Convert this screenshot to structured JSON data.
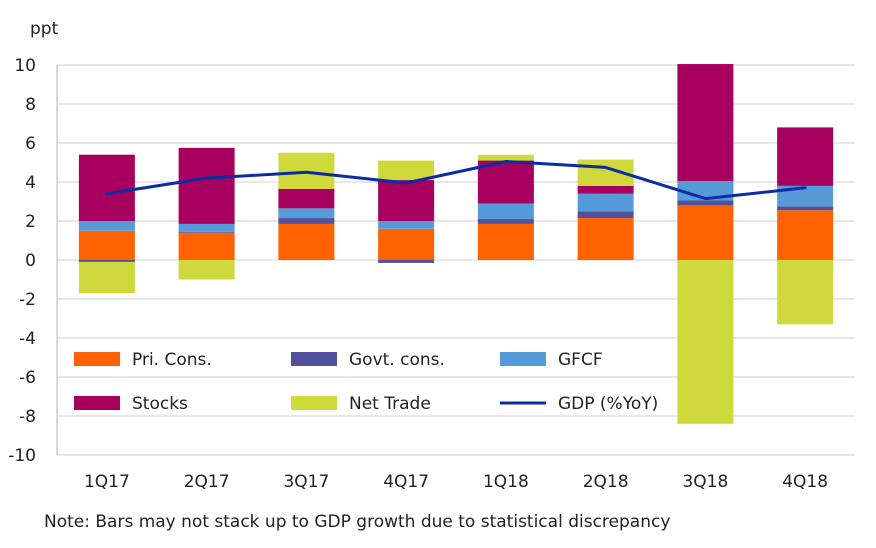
{
  "chart_data": {
    "type": "bar",
    "stacked": true,
    "ylabel": "ppt",
    "ylim": [
      -10,
      10
    ],
    "yticks": [
      10,
      8,
      6,
      4,
      2,
      0,
      -2,
      -4,
      -6,
      -8,
      -10
    ],
    "grid": true,
    "categories": [
      "1Q17",
      "2Q17",
      "3Q17",
      "4Q17",
      "1Q18",
      "2Q18",
      "3Q18",
      "4Q18"
    ],
    "series": [
      {
        "name": "Pri. Cons.",
        "color": "#ff6200",
        "values": [
          1.5,
          1.4,
          1.85,
          1.6,
          1.85,
          2.15,
          2.8,
          2.55
        ]
      },
      {
        "name": "Govt. cons.",
        "color": "#525199",
        "values": [
          -0.1,
          0.05,
          0.3,
          -0.15,
          0.25,
          0.35,
          0.25,
          0.2
        ]
      },
      {
        "name": "GFCF",
        "color": "#559bd9",
        "values": [
          0.5,
          0.4,
          0.5,
          0.4,
          0.8,
          0.9,
          1.0,
          1.05
        ]
      },
      {
        "name": "Stocks",
        "color": "#a8005e",
        "values": [
          3.4,
          3.9,
          1.0,
          2.1,
          2.2,
          0.4,
          6.0,
          3.0
        ]
      },
      {
        "name": "Net Trade",
        "color": "#d0d93b",
        "values": [
          -1.6,
          -1.0,
          1.85,
          1.0,
          0.3,
          1.35,
          -8.4,
          -3.3
        ]
      }
    ],
    "line": {
      "name": "GDP (%YoY)",
      "color": "#0b2da3",
      "values": [
        3.4,
        4.2,
        4.5,
        3.95,
        5.05,
        4.75,
        3.15,
        3.7
      ]
    },
    "legend": {
      "placement": "inside-bottom-left",
      "rows": [
        [
          "Pri. Cons.",
          "Govt. cons.",
          "GFCF"
        ],
        [
          "Stocks",
          "Net Trade",
          "GDP (%YoY)"
        ]
      ]
    }
  },
  "note": "Note: Bars may not stack up to GDP growth due to statistical discrepancy"
}
